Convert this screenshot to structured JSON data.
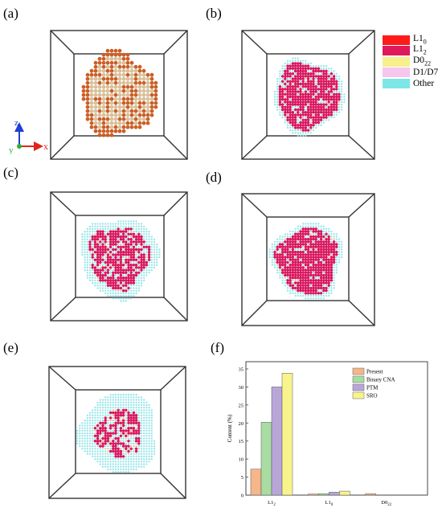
{
  "panels": {
    "a": {
      "label": "(a)"
    },
    "b": {
      "label": "(b)"
    },
    "c": {
      "label": "(c)"
    },
    "d": {
      "label": "(d)"
    },
    "e": {
      "label": "(e)"
    },
    "f": {
      "label": "(f)"
    }
  },
  "legend": {
    "items": [
      {
        "base": "L1",
        "sub": "0",
        "color": "#ff1a1a"
      },
      {
        "base": "L1",
        "sub": "2",
        "color": "#e0195a"
      },
      {
        "base": "D0",
        "sub": "22",
        "color": "#f7f08a"
      },
      {
        "base": "D1/D7",
        "sub": "",
        "color": "#f5c6ee"
      },
      {
        "base": "Other",
        "sub": "",
        "color": "#7de6e6"
      }
    ]
  },
  "axes_triad": {
    "z": "z",
    "y": "y",
    "x": "x"
  },
  "colors": {
    "a_outer": "#cc5f26",
    "a_inner": "#d8c09a",
    "l12": "#d8175e",
    "other": "#8fe3e6",
    "beige": "#d9c79e"
  },
  "chart_data": {
    "type": "bar",
    "categories": [
      "L1",
      "L1",
      "D0"
    ],
    "category_subs": [
      "2",
      "0",
      "22"
    ],
    "ylabel": "Content (%)",
    "ylim": [
      0,
      37
    ],
    "yticks": [
      0,
      5,
      10,
      15,
      20,
      25,
      30,
      35
    ],
    "series": [
      {
        "name": "Present",
        "color": "#f7b58a",
        "values": [
          7.2,
          0.3,
          0.4
        ]
      },
      {
        "name": "Binary CNA",
        "color": "#a9dca2",
        "values": [
          20.2,
          0.4,
          0.0
        ]
      },
      {
        "name": "PTM",
        "color": "#b9a6d9",
        "values": [
          30.0,
          0.8,
          0.0
        ]
      },
      {
        "name": "SRO",
        "color": "#f8f48c",
        "values": [
          33.8,
          1.1,
          0.0
        ]
      }
    ],
    "legend_position": "top-right"
  }
}
